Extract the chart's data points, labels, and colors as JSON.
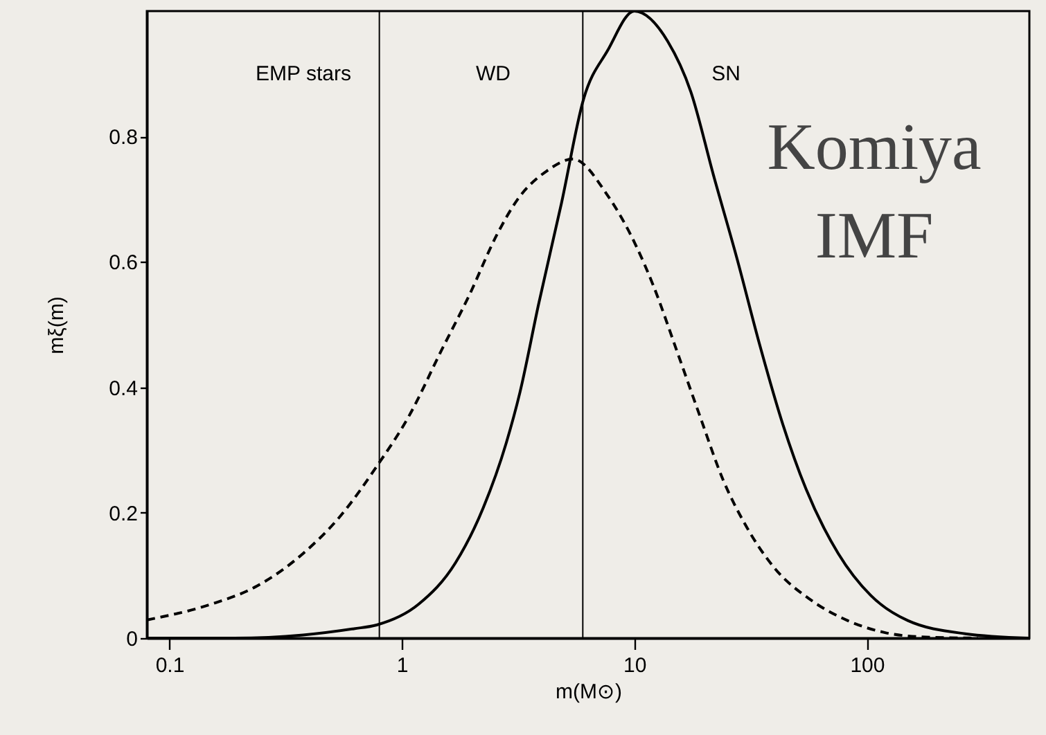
{
  "chart_data": {
    "type": "line",
    "xlabel": "m(M⊙)",
    "ylabel": "mξ(m)",
    "log": "x",
    "xlim": [
      0.08,
      500
    ],
    "xticks": [
      0.1,
      1,
      10,
      100
    ],
    "ylim": [
      0,
      1
    ],
    "yticks": [
      0,
      0.2,
      0.4,
      0.6,
      0.8
    ],
    "grid": false,
    "marker": "none",
    "series": [
      {
        "color": "#000000",
        "line_style": "solid",
        "x": [
          0.08,
          0.19,
          0.376,
          0.622,
          0.78,
          1.18,
          1.7,
          2.24,
          2.81,
          3.22,
          3.87,
          4.86,
          6.05,
          7.67,
          10,
          13.9,
          17.5,
          21.9,
          27.6,
          34.7,
          43.5,
          54.7,
          75.3,
          104,
          150,
          265,
          496
        ],
        "values": [
          0,
          0,
          0.005,
          0.015,
          0.021,
          0.054,
          0.12,
          0.208,
          0.311,
          0.392,
          0.532,
          0.694,
          0.86,
          0.937,
          1.0,
          0.952,
          0.871,
          0.738,
          0.606,
          0.466,
          0.341,
          0.238,
          0.135,
          0.068,
          0.028,
          0.007,
          0
        ]
      },
      {
        "color": "#000000",
        "line_style": "dashed",
        "x": [
          0.08,
          0.151,
          0.238,
          0.376,
          0.542,
          0.78,
          1.076,
          1.48,
          1.95,
          2.56,
          3.15,
          4.2,
          5.44,
          7.67,
          10.1,
          12.1,
          15.2,
          19.1,
          24.1,
          30.2,
          39.8,
          57.3,
          82.6,
          119,
          171,
          300
        ],
        "values": [
          0.029,
          0.054,
          0.083,
          0.135,
          0.194,
          0.274,
          0.355,
          0.459,
          0.547,
          0.643,
          0.7,
          0.745,
          0.764,
          0.706,
          0.628,
          0.561,
          0.459,
          0.355,
          0.252,
          0.179,
          0.113,
          0.061,
          0.028,
          0.009,
          0.002,
          0
        ]
      }
    ],
    "ref_lines": [
      {
        "axis": "x",
        "value": 0.8,
        "color": "#000000"
      },
      {
        "axis": "x",
        "value": 6,
        "color": "#000000"
      }
    ],
    "annotations": [
      "EMP stars",
      "WD",
      "SN",
      "Komiya\nIMF"
    ]
  }
}
